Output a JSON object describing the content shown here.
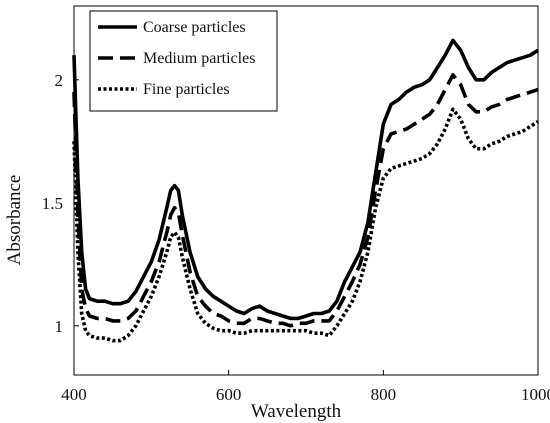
{
  "chart_data": {
    "type": "line",
    "xlabel": "Wavelength",
    "ylabel": "Absorbance",
    "xlim": [
      400,
      1000
    ],
    "ylim": [
      0.8,
      2.3
    ],
    "grid": false,
    "legend_placement": "top-left",
    "x_ticks": [
      {
        "value": 400,
        "label": "400"
      },
      {
        "value": 600,
        "label": "600"
      },
      {
        "value": 800,
        "label": "800"
      },
      {
        "value": 1000,
        "label": "1000"
      }
    ],
    "y_ticks": [
      {
        "value": 1,
        "label": "1"
      },
      {
        "value": 1.5,
        "label": "1.5"
      },
      {
        "value": 2,
        "label": "2"
      }
    ],
    "series": [
      {
        "name": "Coarse particles",
        "line_style": "solid",
        "color": "#000000",
        "x": [
          400,
          405,
          410,
          415,
          420,
          430,
          440,
          450,
          460,
          470,
          480,
          490,
          500,
          510,
          520,
          525,
          530,
          535,
          540,
          550,
          560,
          570,
          580,
          590,
          600,
          610,
          620,
          630,
          640,
          650,
          660,
          670,
          680,
          690,
          700,
          710,
          720,
          730,
          740,
          750,
          760,
          770,
          780,
          790,
          800,
          810,
          820,
          830,
          840,
          850,
          860,
          870,
          880,
          890,
          900,
          910,
          920,
          930,
          940,
          950,
          960,
          970,
          980,
          990,
          1000
        ],
        "y": [
          2.1,
          1.6,
          1.3,
          1.15,
          1.11,
          1.1,
          1.1,
          1.09,
          1.09,
          1.1,
          1.14,
          1.2,
          1.26,
          1.35,
          1.48,
          1.55,
          1.57,
          1.55,
          1.45,
          1.3,
          1.2,
          1.15,
          1.12,
          1.1,
          1.08,
          1.06,
          1.05,
          1.07,
          1.08,
          1.06,
          1.05,
          1.04,
          1.03,
          1.03,
          1.04,
          1.05,
          1.05,
          1.06,
          1.1,
          1.18,
          1.24,
          1.3,
          1.42,
          1.62,
          1.82,
          1.9,
          1.92,
          1.95,
          1.97,
          1.98,
          2.0,
          2.05,
          2.1,
          2.16,
          2.12,
          2.05,
          2.0,
          2.0,
          2.03,
          2.05,
          2.07,
          2.08,
          2.09,
          2.1,
          2.12
        ]
      },
      {
        "name": "Medium particles",
        "line_style": "dashed",
        "color": "#000000",
        "x": [
          400,
          405,
          410,
          415,
          420,
          430,
          440,
          450,
          460,
          470,
          480,
          490,
          500,
          510,
          520,
          525,
          530,
          535,
          540,
          550,
          560,
          570,
          580,
          590,
          600,
          610,
          620,
          630,
          640,
          650,
          660,
          670,
          680,
          690,
          700,
          710,
          720,
          730,
          740,
          750,
          760,
          770,
          780,
          790,
          800,
          810,
          820,
          830,
          840,
          850,
          860,
          870,
          880,
          890,
          900,
          910,
          920,
          930,
          940,
          950,
          960,
          970,
          980,
          990,
          1000
        ],
        "y": [
          1.95,
          1.45,
          1.15,
          1.07,
          1.04,
          1.03,
          1.03,
          1.02,
          1.02,
          1.03,
          1.06,
          1.12,
          1.18,
          1.26,
          1.38,
          1.45,
          1.48,
          1.46,
          1.37,
          1.22,
          1.12,
          1.08,
          1.05,
          1.04,
          1.02,
          1.01,
          1.01,
          1.03,
          1.03,
          1.02,
          1.01,
          1.01,
          1.0,
          1.01,
          1.01,
          1.02,
          1.02,
          1.02,
          1.06,
          1.12,
          1.18,
          1.25,
          1.36,
          1.55,
          1.72,
          1.78,
          1.79,
          1.8,
          1.82,
          1.84,
          1.86,
          1.9,
          1.96,
          2.02,
          1.98,
          1.9,
          1.87,
          1.87,
          1.89,
          1.9,
          1.92,
          1.93,
          1.94,
          1.95,
          1.96
        ]
      },
      {
        "name": "Fine particles",
        "line_style": "dotted",
        "color": "#000000",
        "x": [
          400,
          405,
          410,
          415,
          420,
          430,
          440,
          450,
          460,
          470,
          480,
          490,
          500,
          510,
          520,
          525,
          530,
          535,
          540,
          550,
          560,
          570,
          580,
          590,
          600,
          610,
          620,
          630,
          640,
          650,
          660,
          670,
          680,
          690,
          700,
          710,
          720,
          730,
          740,
          750,
          760,
          770,
          780,
          790,
          800,
          810,
          820,
          830,
          840,
          850,
          860,
          870,
          880,
          890,
          900,
          910,
          920,
          930,
          940,
          950,
          960,
          970,
          980,
          990,
          1000
        ],
        "y": [
          1.75,
          1.3,
          1.05,
          0.98,
          0.96,
          0.95,
          0.95,
          0.94,
          0.94,
          0.96,
          1.0,
          1.06,
          1.12,
          1.2,
          1.3,
          1.36,
          1.38,
          1.36,
          1.28,
          1.15,
          1.05,
          1.01,
          0.99,
          0.98,
          0.98,
          0.97,
          0.97,
          0.98,
          0.98,
          0.98,
          0.98,
          0.98,
          0.98,
          0.98,
          0.98,
          0.97,
          0.97,
          0.96,
          1.0,
          1.05,
          1.1,
          1.18,
          1.3,
          1.48,
          1.6,
          1.64,
          1.65,
          1.66,
          1.67,
          1.68,
          1.7,
          1.74,
          1.8,
          1.88,
          1.84,
          1.76,
          1.72,
          1.72,
          1.74,
          1.75,
          1.77,
          1.78,
          1.79,
          1.81,
          1.83
        ]
      }
    ]
  }
}
